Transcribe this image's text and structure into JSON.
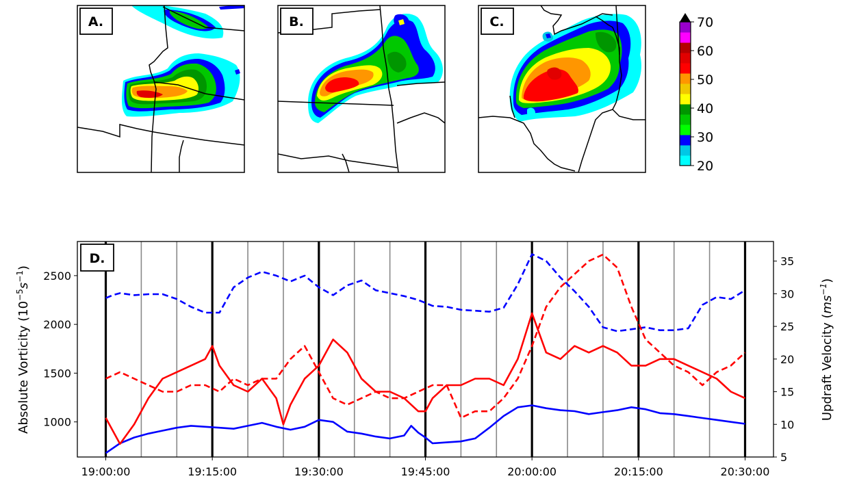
{
  "maps": {
    "panels": [
      {
        "label": "A."
      },
      {
        "label": "B."
      },
      {
        "label": "C."
      }
    ],
    "colorbar": {
      "ticks": [
        "70",
        "60",
        "50",
        "40",
        "30",
        "20"
      ],
      "colors": [
        "#00ffff",
        "#00c8e6",
        "#0000ff",
        "#00ff00",
        "#00c800",
        "#009600",
        "#ffff00",
        "#f0c800",
        "#ff9600",
        "#ff0000",
        "#e10000",
        "#b40000",
        "#ff00ff",
        "#9900cc"
      ]
    }
  },
  "chart_data": {
    "type": "line",
    "panel_label": "D.",
    "ylabel": "Absolute Vorticity (10$^{-5}$s$^{-1}$)",
    "ylabel_left_base": "Absolute Vorticity (10",
    "ylabel_left_exp": "−5",
    "ylabel_left_unit": "s",
    "ylabel_left_unit_exp": "−1",
    "ylabel_left_end": ")",
    "ylabel_right_base": "Updraft Velocity (",
    "ylabel_right_unit": "ms",
    "ylabel_right_unit_exp": "−1",
    "ylabel_right_end": ")",
    "x_ticks": [
      "19:00:00",
      "19:15:00",
      "19:30:00",
      "19:45:00",
      "20:00:00",
      "20:15:00",
      "20:30:00"
    ],
    "x_range_minutes": [
      -4,
      94
    ],
    "ylim_left": [
      640,
      2850
    ],
    "yticks_left": [
      1000,
      1500,
      2000,
      2500
    ],
    "ylim_right": [
      5,
      38
    ],
    "yticks_right": [
      5,
      10,
      15,
      20,
      25,
      30,
      35
    ],
    "bold_vlines_minutes": [
      0,
      15,
      30,
      45,
      60,
      75,
      90
    ],
    "thin_vlines_minutes": [
      5,
      10,
      20,
      25,
      35,
      40,
      50,
      55,
      65,
      70,
      80,
      85
    ],
    "series": [
      {
        "style": "solid",
        "color": "#0000ff",
        "axis": "left",
        "x": [
          0,
          2,
          4,
          6,
          8,
          10,
          12,
          14,
          16,
          18,
          20,
          22,
          24,
          26,
          28,
          30,
          32,
          34,
          36,
          38,
          40,
          42,
          43,
          44,
          45,
          46,
          48,
          50,
          52,
          54,
          56,
          58,
          60,
          62,
          64,
          66,
          68,
          70,
          72,
          74,
          76,
          78,
          80,
          82,
          84,
          86,
          88,
          90
        ],
        "values": [
          680,
          780,
          840,
          880,
          910,
          940,
          960,
          950,
          940,
          930,
          960,
          990,
          950,
          920,
          950,
          1020,
          1000,
          900,
          880,
          850,
          830,
          860,
          960,
          890,
          840,
          780,
          790,
          800,
          830,
          940,
          1060,
          1150,
          1170,
          1140,
          1120,
          1110,
          1080,
          1100,
          1120,
          1150,
          1130,
          1090,
          1080,
          1060,
          1040,
          1020,
          1000,
          980
        ]
      },
      {
        "style": "dashed",
        "color": "#0000ff",
        "axis": "left",
        "x": [
          0,
          1,
          2,
          4,
          6,
          8,
          10,
          12,
          14,
          16,
          18,
          20,
          22,
          24,
          26,
          28,
          30,
          32,
          34,
          36,
          38,
          40,
          42,
          44,
          46,
          48,
          50,
          52,
          54,
          56,
          58,
          60,
          62,
          64,
          66,
          68,
          70,
          72,
          74,
          76,
          78,
          80,
          82,
          84,
          86,
          88,
          90
        ],
        "values": [
          2270,
          2300,
          2320,
          2300,
          2310,
          2310,
          2260,
          2180,
          2120,
          2120,
          2380,
          2480,
          2540,
          2500,
          2440,
          2500,
          2380,
          2300,
          2400,
          2450,
          2350,
          2320,
          2290,
          2250,
          2190,
          2180,
          2150,
          2140,
          2130,
          2170,
          2410,
          2720,
          2650,
          2480,
          2340,
          2180,
          1970,
          1930,
          1950,
          1970,
          1940,
          1940,
          1960,
          2200,
          2280,
          2260,
          2350
        ]
      },
      {
        "style": "solid",
        "color": "#ff0000",
        "axis": "right",
        "x": [
          0,
          2,
          4,
          6,
          8,
          10,
          12,
          14,
          15,
          16,
          18,
          20,
          22,
          24,
          25,
          26,
          27,
          28,
          30,
          32,
          34,
          36,
          38,
          40,
          42,
          44,
          45,
          46,
          48,
          50,
          52,
          54,
          56,
          58,
          60,
          62,
          64,
          66,
          68,
          70,
          72,
          74,
          76,
          78,
          80,
          82,
          84,
          86,
          88,
          90
        ],
        "values": [
          11,
          7,
          10,
          14,
          17,
          18,
          19,
          20,
          22,
          19,
          16,
          15,
          17,
          14,
          10,
          13,
          15,
          17,
          19,
          23,
          21,
          17,
          15,
          15,
          14,
          12,
          12,
          14,
          16,
          16,
          17,
          17,
          16,
          20,
          27,
          21,
          20,
          22,
          21,
          22,
          21,
          19,
          19,
          20,
          20,
          19,
          18,
          17,
          15,
          14
        ]
      },
      {
        "style": "dashed",
        "color": "#ff0000",
        "axis": "right",
        "x": [
          0,
          2,
          4,
          6,
          8,
          10,
          12,
          14,
          16,
          18,
          20,
          22,
          24,
          26,
          28,
          29,
          30,
          32,
          34,
          36,
          38,
          40,
          42,
          44,
          46,
          48,
          50,
          52,
          54,
          56,
          58,
          60,
          62,
          64,
          66,
          68,
          70,
          72,
          74,
          76,
          78,
          80,
          82,
          84,
          86,
          88,
          90
        ],
        "values": [
          17,
          18,
          17,
          16,
          15,
          15,
          16,
          16,
          15,
          17,
          16,
          17,
          17,
          20,
          22,
          20,
          18,
          14,
          13,
          14,
          15,
          14,
          14,
          15,
          16,
          16,
          11,
          12,
          12,
          14,
          17,
          22,
          28,
          31,
          33,
          35,
          36,
          34,
          28,
          23,
          21,
          19,
          18,
          16,
          18,
          19,
          21
        ]
      }
    ]
  }
}
